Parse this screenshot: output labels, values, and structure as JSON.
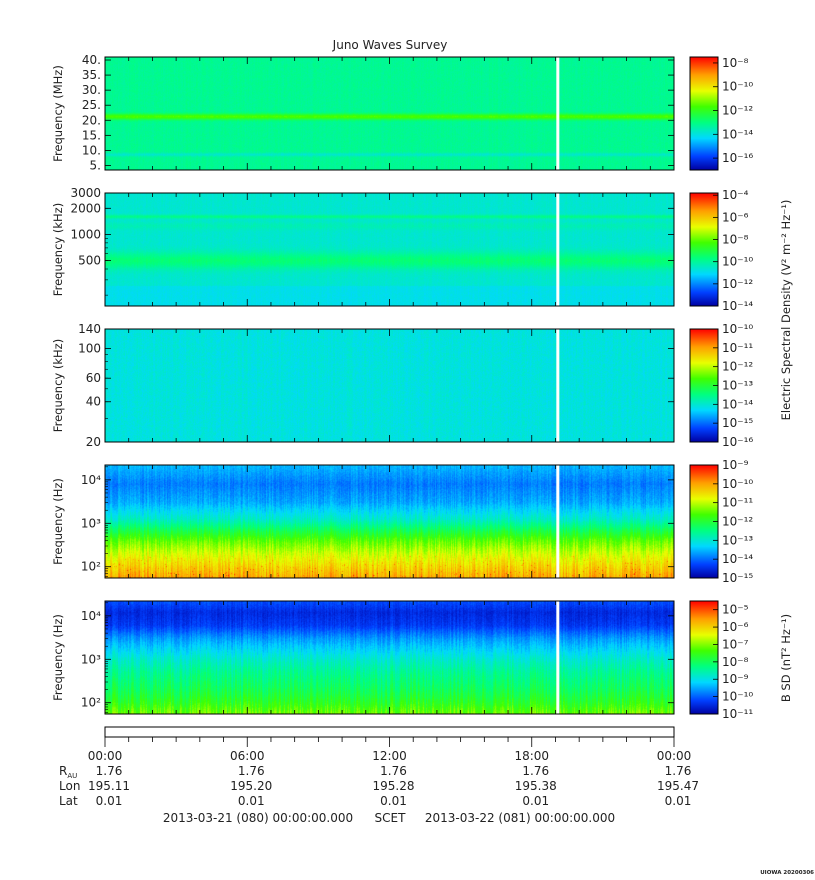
{
  "title": "Juno Waves Survey",
  "footer": {
    "start": "2013-03-21 (080) 00:00:00.000",
    "mode": "SCET",
    "end": "2013-03-22 (081) 00:00:00.000"
  },
  "stamp": "UIOWA 20200306",
  "time_axis": {
    "ticks": [
      "00:00",
      "06:00",
      "12:00",
      "18:00",
      "00:00"
    ],
    "rows": [
      {
        "label": "R",
        "label_sub": "AU",
        "values": [
          "1.76",
          "1.76",
          "1.76",
          "1.76",
          "1.76"
        ]
      },
      {
        "label": "Lon",
        "label_sub": "",
        "values": [
          "195.11",
          "195.20",
          "195.28",
          "195.38",
          "195.47"
        ]
      },
      {
        "label": "Lat",
        "label_sub": "",
        "values": [
          "0.01",
          "0.01",
          "0.01",
          "0.01",
          "0.01"
        ]
      }
    ]
  },
  "colorbar_labels": {
    "electric": "Electric Spectral Density (V² m⁻² Hz⁻¹)",
    "magnetic": "B SD (nT² Hz⁻¹)"
  },
  "chart_data": [
    {
      "type": "heatmap",
      "panel": 1,
      "ylabel": "Frequency (MHz)",
      "y_scale": "linear",
      "ylim": [
        3.5,
        41
      ],
      "yticks": [
        5,
        10,
        15,
        20,
        25,
        30,
        35,
        40
      ],
      "ytick_labels": [
        "5.",
        "10.",
        "15.",
        "20.",
        "25.",
        "30.",
        "35.",
        "40."
      ],
      "x_range_hours": [
        0,
        24
      ],
      "data_gap_hour": 19.1,
      "colorbar": {
        "log_min": -17,
        "log_max": -7.5,
        "ticks": [
          -16,
          -14,
          -12,
          -10,
          -8
        ]
      },
      "background_log": -13.2,
      "bands": [
        {
          "y": 21.2,
          "log": -11.6,
          "width": 0.7
        },
        {
          "y": 8.6,
          "log": -13.8,
          "width": 0.4
        }
      ]
    },
    {
      "type": "heatmap",
      "panel": 2,
      "ylabel": "Frequency (kHz)",
      "y_scale": "log",
      "ylim": [
        150,
        3000
      ],
      "yticks": [
        500,
        1000,
        2000,
        3000
      ],
      "ytick_labels": [
        "500",
        "1000",
        "2000",
        "3000"
      ],
      "x_range_hours": [
        0,
        24
      ],
      "data_gap_hour": 19.1,
      "colorbar": {
        "log_min": -14,
        "log_max": -3.8,
        "ticks": [
          -14,
          -12,
          -10,
          -8,
          -6,
          -4
        ]
      },
      "background_log": -10.6,
      "low_log": -10.9,
      "bands": [
        {
          "y": 500,
          "log": -9.6,
          "width": 0.07
        },
        {
          "y": 1600,
          "log": -9.8,
          "width": 0.015
        },
        {
          "y": 1250,
          "log": -10.3,
          "width": 0.03
        }
      ]
    },
    {
      "type": "heatmap",
      "panel": 3,
      "ylabel": "Frequency (kHz)",
      "y_scale": "log",
      "ylim": [
        20,
        140
      ],
      "yticks": [
        20,
        40,
        60,
        100,
        140
      ],
      "ytick_labels": [
        "20",
        "40",
        "60",
        "100",
        "140"
      ],
      "x_range_hours": [
        0,
        24
      ],
      "data_gap_hour": 19.1,
      "colorbar": {
        "log_min": -16,
        "log_max": -10,
        "ticks": [
          -16,
          -15,
          -14,
          -13,
          -12,
          -11,
          -10
        ]
      },
      "background_log": -14.1,
      "bands": []
    },
    {
      "type": "heatmap",
      "panel": 4,
      "ylabel": "Frequency (Hz)",
      "y_scale": "log",
      "ylim": [
        55,
        22000
      ],
      "yticks": [
        100,
        1000,
        10000
      ],
      "ytick_labels": [
        "10^2",
        "10^3",
        "10^4"
      ],
      "x_range_hours": [
        0,
        24
      ],
      "data_gap_hour": 19.1,
      "colorbar": {
        "log_min": -15,
        "log_max": -9,
        "ticks": [
          -15,
          -14,
          -13,
          -12,
          -11,
          -10,
          -9
        ]
      },
      "profile": [
        [
          55,
          -10.0
        ],
        [
          100,
          -10.4
        ],
        [
          200,
          -10.9
        ],
        [
          400,
          -11.5
        ],
        [
          700,
          -12.2
        ],
        [
          1200,
          -12.9
        ],
        [
          3000,
          -13.6
        ],
        [
          8000,
          -13.9
        ],
        [
          22000,
          -13.5
        ]
      ],
      "bands": []
    },
    {
      "type": "heatmap",
      "panel": 5,
      "ylabel": "Frequency (Hz)",
      "y_scale": "log",
      "ylim": [
        55,
        22000
      ],
      "yticks": [
        100,
        1000,
        10000
      ],
      "ytick_labels": [
        "10^2",
        "10^3",
        "10^4"
      ],
      "x_range_hours": [
        0,
        24
      ],
      "data_gap_hour": 19.1,
      "colorbar": {
        "log_min": -11,
        "log_max": -4.5,
        "ticks": [
          -11,
          -10,
          -9,
          -8,
          -7,
          -6,
          -5
        ]
      },
      "profile": [
        [
          55,
          -7.1
        ],
        [
          100,
          -7.6
        ],
        [
          200,
          -8.0
        ],
        [
          500,
          -8.4
        ],
        [
          1000,
          -8.8
        ],
        [
          3000,
          -9.6
        ],
        [
          6000,
          -10.3
        ],
        [
          12000,
          -10.5
        ],
        [
          22000,
          -10.1
        ]
      ],
      "bands": []
    }
  ]
}
